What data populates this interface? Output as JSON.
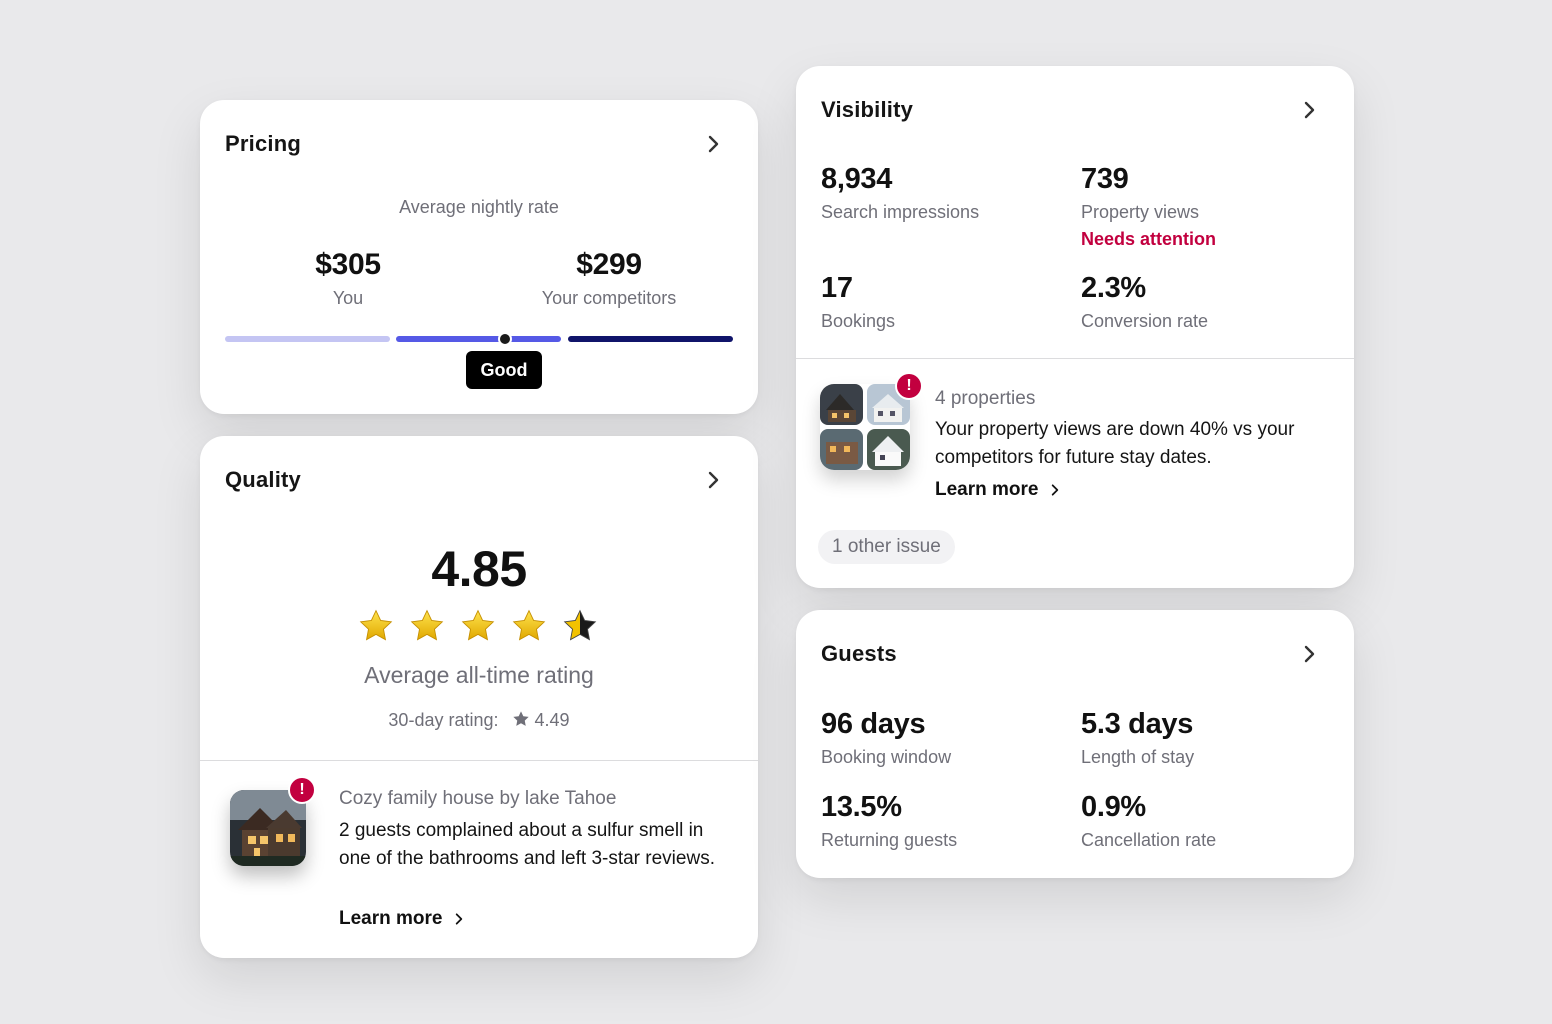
{
  "pricing": {
    "title": "Pricing",
    "subtitle": "Average nightly rate",
    "you_value": "$305",
    "you_label": "You",
    "competitor_value": "$299",
    "competitor_label": "Your competitors",
    "status": "Good",
    "colors": {
      "light": "#c4c5f3",
      "mid": "#5559e6",
      "dark": "#10146a"
    }
  },
  "quality": {
    "title": "Quality",
    "rating": "4.85",
    "rating_label": "Average all-time rating",
    "rating_30_prefix": "30-day rating:",
    "rating_30_value": "4.49",
    "issue": {
      "property": "Cozy family house by lake Tahoe",
      "text": "2 guests complained about a sulfur smell in one of the bathrooms and left 3-star reviews.",
      "link": "Learn more",
      "badge": "!"
    }
  },
  "visibility": {
    "title": "Visibility",
    "stats": [
      {
        "value": "8,934",
        "label": "Search impressions"
      },
      {
        "value": "739",
        "label": "Property views",
        "warning": "Needs attention"
      },
      {
        "value": "17",
        "label": "Bookings"
      },
      {
        "value": "2.3%",
        "label": "Conversion rate"
      }
    ],
    "issue": {
      "count": "4 properties",
      "text": "Your property views are down 40% vs your competitors for future stay dates.",
      "link": "Learn more",
      "badge": "!"
    },
    "other_issue": "1 other issue"
  },
  "guests": {
    "title": "Guests",
    "stats": [
      {
        "value": "96 days",
        "label": "Booking window"
      },
      {
        "value": "5.3 days",
        "label": "Length of stay"
      },
      {
        "value": "13.5%",
        "label": "Returning guests"
      },
      {
        "value": "0.9%",
        "label": "Cancellation rate"
      }
    ]
  },
  "colors": {
    "alert": "#c2003f",
    "muted_text": "#6f6f78"
  }
}
